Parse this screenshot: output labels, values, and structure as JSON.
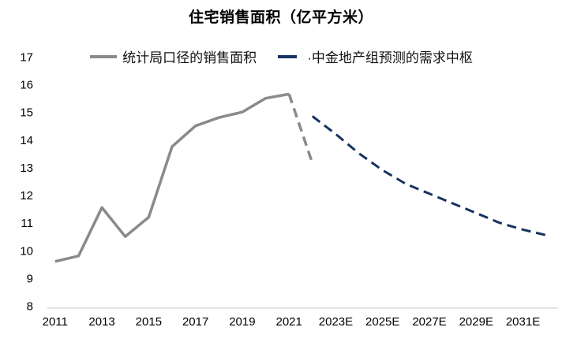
{
  "title": "住宅销售面积（亿平方米）",
  "legend": [
    {
      "label": "统计局口径的销售面积",
      "color": "#8a8a8a",
      "style": "solid"
    },
    {
      "label": "·中金地产组预测的需求中枢",
      "color": "#17325f",
      "style": "dashed"
    }
  ],
  "colors": {
    "historical_line": "#8a8a8a",
    "forecast_line": "#17325f",
    "axis_line": "#e4e4e4",
    "tick_label": "#000000"
  },
  "chart_data": {
    "type": "line",
    "title": "住宅销售面积（亿平方米）",
    "xlabel": "",
    "ylabel": "",
    "ylim": [
      8,
      17
    ],
    "y_ticks": [
      8,
      9,
      10,
      11,
      12,
      13,
      14,
      15,
      16,
      17
    ],
    "grid": false,
    "legend_position": "top",
    "x_years": [
      2011,
      2012,
      2013,
      2014,
      2015,
      2016,
      2017,
      2018,
      2019,
      2020,
      2021,
      2022,
      2023,
      2024,
      2025,
      2026,
      2027,
      2028,
      2029,
      2030,
      2031,
      2032
    ],
    "x_ticks": [
      {
        "label": "2011",
        "year": 2011
      },
      {
        "label": "2013",
        "year": 2013
      },
      {
        "label": "2015",
        "year": 2015
      },
      {
        "label": "2017",
        "year": 2017
      },
      {
        "label": "2019",
        "year": 2019
      },
      {
        "label": "2021",
        "year": 2021
      },
      {
        "label": "2023E",
        "year": 2023
      },
      {
        "label": "2025E",
        "year": 2025
      },
      {
        "label": "2027E",
        "year": 2027
      },
      {
        "label": "2029E",
        "year": 2029
      },
      {
        "label": "2031E",
        "year": 2031
      }
    ],
    "series": [
      {
        "name": "统计局口径的销售面积",
        "color": "#8a8a8a",
        "stroke_width": 3.5,
        "segments": [
          {
            "style": "solid",
            "start_year": 2011,
            "values": [
              9.6,
              9.8,
              11.55,
              10.5,
              11.2,
              13.75,
              14.5,
              14.8,
              15.0,
              15.5,
              15.65
            ]
          },
          {
            "style": "dashed",
            "start_year": 2021,
            "values": [
              15.65,
              13.15
            ]
          }
        ]
      },
      {
        "name": "中金地产组预测的需求中枢",
        "color": "#17325f",
        "stroke_width": 3,
        "segments": [
          {
            "style": "dashed",
            "start_year": 2022,
            "values": [
              14.85,
              14.2,
              13.5,
              12.9,
              12.4,
              12.05,
              11.7,
              11.35,
              11.0,
              10.75,
              10.55
            ]
          }
        ]
      }
    ]
  }
}
